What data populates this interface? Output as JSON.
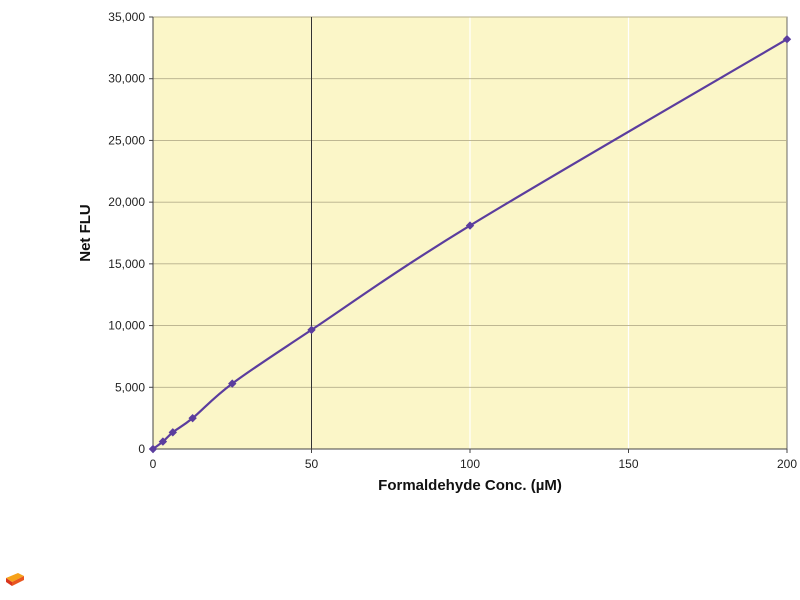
{
  "chart_data": {
    "type": "line",
    "title": "",
    "xlabel": "Formaldehyde Conc. (µM)",
    "ylabel": "Net FLU",
    "xlim": [
      0,
      200
    ],
    "ylim": [
      0,
      35000
    ],
    "x_ticks": [
      0,
      50,
      100,
      150,
      200
    ],
    "y_ticks": [
      0,
      5000,
      10000,
      15000,
      20000,
      25000,
      30000,
      35000
    ],
    "x_tick_labels": [
      "0",
      "50",
      "100",
      "150",
      "200"
    ],
    "y_tick_labels": [
      "0",
      "5,000",
      "10,000",
      "15,000",
      "20,000",
      "25,000",
      "30,000",
      "35,000"
    ],
    "grid": "horizontal",
    "series": [
      {
        "x": [
          0,
          3.125,
          6.25,
          12.5,
          25,
          50,
          100,
          200
        ],
        "y": [
          0,
          600,
          1350,
          2500,
          5300,
          9650,
          18100,
          33200
        ]
      }
    ]
  },
  "colors": {
    "plot_background": "#fbf6c8",
    "series_line": "#5b3d9e",
    "series_marker": "#5b3d9e",
    "grid": "#b5ae8a",
    "minor_grid": "#ffffff",
    "axis": "#444444",
    "highlight_line": "#333333"
  },
  "highlight_x": 50,
  "logo": {
    "icon": "brand-logo-icon"
  }
}
